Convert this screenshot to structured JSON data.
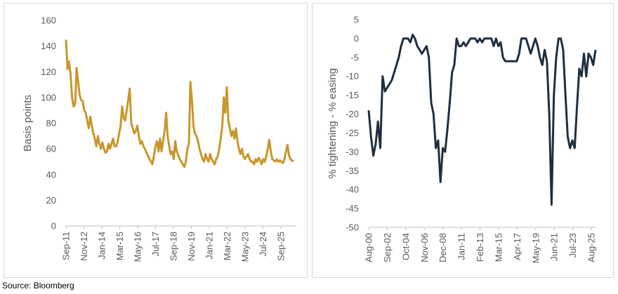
{
  "footer": {
    "source": "Source: Bloomberg"
  },
  "chart_data": [
    {
      "type": "line",
      "title": "",
      "xlabel": "",
      "ylabel": "Basis points",
      "ylim": [
        0,
        160
      ],
      "yticks": [
        0,
        20,
        40,
        60,
        80,
        100,
        120,
        140,
        160
      ],
      "x_tick_labels": [
        "Sep-11",
        "Nov-12",
        "Jan-14",
        "Mar-15",
        "May-16",
        "Jul-17",
        "Sep-18",
        "Nov-19",
        "Jan-21",
        "Mar-22",
        "May-23",
        "Jul-24",
        "Sep-25"
      ],
      "grid": false,
      "legend": "none",
      "color": "#c9962b",
      "series": [
        {
          "name": "",
          "points": [
            [
              "2011-09",
              145
            ],
            [
              "2011-10",
              122
            ],
            [
              "2011-11",
              128
            ],
            [
              "2011-12",
              118
            ],
            [
              "2012-01",
              100
            ],
            [
              "2012-02",
              93
            ],
            [
              "2012-03",
              95
            ],
            [
              "2012-04",
              123
            ],
            [
              "2012-05",
              112
            ],
            [
              "2012-06",
              102
            ],
            [
              "2012-07",
              98
            ],
            [
              "2012-08",
              97
            ],
            [
              "2012-09",
              90
            ],
            [
              "2012-10",
              88
            ],
            [
              "2012-11",
              82
            ],
            [
              "2012-12",
              76
            ],
            [
              "2013-01",
              85
            ],
            [
              "2013-02",
              78
            ],
            [
              "2013-03",
              72
            ],
            [
              "2013-04",
              68
            ],
            [
              "2013-05",
              62
            ],
            [
              "2013-06",
              70
            ],
            [
              "2013-07",
              64
            ],
            [
              "2013-08",
              60
            ],
            [
              "2013-09",
              65
            ],
            [
              "2013-10",
              60
            ],
            [
              "2013-11",
              57
            ],
            [
              "2013-12",
              58
            ],
            [
              "2014-01",
              64
            ],
            [
              "2014-02",
              60
            ],
            [
              "2014-03",
              64
            ],
            [
              "2014-04",
              68
            ],
            [
              "2014-05",
              62
            ],
            [
              "2014-06",
              62
            ],
            [
              "2014-07",
              65
            ],
            [
              "2014-08",
              72
            ],
            [
              "2014-09",
              78
            ],
            [
              "2014-10",
              93
            ],
            [
              "2014-11",
              84
            ],
            [
              "2014-12",
              82
            ],
            [
              "2015-01",
              90
            ],
            [
              "2015-02",
              98
            ],
            [
              "2015-03",
              107
            ],
            [
              "2015-04",
              80
            ],
            [
              "2015-05",
              76
            ],
            [
              "2015-06",
              72
            ],
            [
              "2015-07",
              74
            ],
            [
              "2015-08",
              78
            ],
            [
              "2015-09",
              70
            ],
            [
              "2015-10",
              64
            ],
            [
              "2015-11",
              66
            ],
            [
              "2015-12",
              62
            ],
            [
              "2016-01",
              60
            ],
            [
              "2016-02",
              57
            ],
            [
              "2016-03",
              55
            ],
            [
              "2016-04",
              52
            ],
            [
              "2016-05",
              50
            ],
            [
              "2016-06",
              48
            ],
            [
              "2016-07",
              55
            ],
            [
              "2016-08",
              62
            ],
            [
              "2016-09",
              66
            ],
            [
              "2016-10",
              58
            ],
            [
              "2016-11",
              68
            ],
            [
              "2016-12",
              58
            ],
            [
              "2017-01",
              66
            ],
            [
              "2017-02",
              74
            ],
            [
              "2017-03",
              88
            ],
            [
              "2017-04",
              70
            ],
            [
              "2017-05",
              62
            ],
            [
              "2017-06",
              56
            ],
            [
              "2017-07",
              58
            ],
            [
              "2017-08",
              52
            ],
            [
              "2017-09",
              66
            ],
            [
              "2017-10",
              58
            ],
            [
              "2017-11",
              55
            ],
            [
              "2017-12",
              52
            ],
            [
              "2018-01",
              50
            ],
            [
              "2018-02",
              48
            ],
            [
              "2018-03",
              46
            ],
            [
              "2018-04",
              50
            ],
            [
              "2018-05",
              60
            ],
            [
              "2018-06",
              64
            ],
            [
              "2018-07",
              112
            ],
            [
              "2018-08",
              98
            ],
            [
              "2018-09",
              78
            ],
            [
              "2018-10",
              72
            ],
            [
              "2018-11",
              70
            ],
            [
              "2018-12",
              66
            ],
            [
              "2019-01",
              60
            ],
            [
              "2019-02",
              56
            ],
            [
              "2019-03",
              52
            ],
            [
              "2019-04",
              50
            ],
            [
              "2019-05",
              56
            ],
            [
              "2019-06",
              52
            ],
            [
              "2019-07",
              50
            ],
            [
              "2019-08",
              56
            ],
            [
              "2019-09",
              52
            ],
            [
              "2019-10",
              50
            ],
            [
              "2019-11",
              48
            ],
            [
              "2019-12",
              52
            ],
            [
              "2020-01",
              54
            ],
            [
              "2020-02",
              60
            ],
            [
              "2020-03",
              68
            ],
            [
              "2020-04",
              78
            ],
            [
              "2020-05",
              100
            ],
            [
              "2020-06",
              88
            ],
            [
              "2020-07",
              108
            ],
            [
              "2020-08",
              82
            ],
            [
              "2020-09",
              76
            ],
            [
              "2020-10",
              70
            ],
            [
              "2020-11",
              74
            ],
            [
              "2020-12",
              68
            ],
            [
              "2021-01",
              76
            ],
            [
              "2021-02",
              66
            ],
            [
              "2021-03",
              60
            ],
            [
              "2021-04",
              56
            ],
            [
              "2021-05",
              60
            ],
            [
              "2021-06",
              54
            ],
            [
              "2021-07",
              52
            ],
            [
              "2021-08",
              54
            ],
            [
              "2021-09",
              56
            ],
            [
              "2021-10",
              52
            ],
            [
              "2021-11",
              50
            ],
            [
              "2021-12",
              50
            ],
            [
              "2022-01",
              48
            ],
            [
              "2022-02",
              52
            ],
            [
              "2022-03",
              50
            ],
            [
              "2022-04",
              53
            ],
            [
              "2022-05",
              51
            ],
            [
              "2022-06",
              48
            ],
            [
              "2022-07",
              52
            ],
            [
              "2022-08",
              50
            ],
            [
              "2022-09",
              54
            ],
            [
              "2022-10",
              60
            ],
            [
              "2022-11",
              67
            ],
            [
              "2022-12",
              58
            ],
            [
              "2023-01",
              52
            ],
            [
              "2023-02",
              51
            ],
            [
              "2023-03",
              50
            ],
            [
              "2023-04",
              52
            ],
            [
              "2023-05",
              50
            ],
            [
              "2023-06",
              51
            ],
            [
              "2023-07",
              50
            ],
            [
              "2023-08",
              49
            ],
            [
              "2023-09",
              52
            ],
            [
              "2023-10",
              58
            ],
            [
              "2023-11",
              63
            ],
            [
              "2023-12",
              55
            ],
            [
              "2024-01",
              52
            ],
            [
              "2024-02",
              51
            ],
            [
              "2024-03",
              50
            ]
          ]
        }
      ]
    },
    {
      "type": "line",
      "title": "",
      "xlabel": "",
      "ylabel": "% tightening - % easing",
      "ylim": [
        -50,
        5
      ],
      "yticks": [
        5,
        0,
        -5,
        -10,
        -15,
        -20,
        -25,
        -30,
        -35,
        -40,
        -45,
        -50
      ],
      "x_tick_labels": [
        "Aug-00",
        "Sep-02",
        "Oct-04",
        "Nov-06",
        "Dec-08",
        "Jan-11",
        "Feb-13",
        "Mar-15",
        "Apr-17",
        "May-19",
        "Jun-21",
        "Jul-23",
        "Aug-25"
      ],
      "grid": false,
      "legend": "none",
      "color": "#1f2f3f",
      "series": [
        {
          "name": "",
          "points": [
            [
              "2000-08",
              -19
            ],
            [
              "2000-11",
              -26
            ],
            [
              "2001-02",
              -31
            ],
            [
              "2001-05",
              -28
            ],
            [
              "2001-08",
              -22
            ],
            [
              "2001-11",
              -29
            ],
            [
              "2002-02",
              -10
            ],
            [
              "2002-05",
              -14
            ],
            [
              "2002-08",
              -13
            ],
            [
              "2002-11",
              -12
            ],
            [
              "2003-02",
              -11
            ],
            [
              "2003-05",
              -9
            ],
            [
              "2003-08",
              -7
            ],
            [
              "2003-11",
              -5
            ],
            [
              "2004-02",
              -2
            ],
            [
              "2004-05",
              0
            ],
            [
              "2004-08",
              0
            ],
            [
              "2004-11",
              0
            ],
            [
              "2005-02",
              -1
            ],
            [
              "2005-05",
              1
            ],
            [
              "2005-08",
              0
            ],
            [
              "2005-11",
              -2
            ],
            [
              "2006-02",
              -3
            ],
            [
              "2006-05",
              -4
            ],
            [
              "2006-08",
              -3
            ],
            [
              "2006-11",
              -2
            ],
            [
              "2007-02",
              -5
            ],
            [
              "2007-05",
              -17
            ],
            [
              "2007-08",
              -20
            ],
            [
              "2007-11",
              -29
            ],
            [
              "2008-02",
              -27
            ],
            [
              "2008-05",
              -38
            ],
            [
              "2008-08",
              -29
            ],
            [
              "2008-11",
              -30
            ],
            [
              "2009-02",
              -24
            ],
            [
              "2009-05",
              -17
            ],
            [
              "2009-08",
              -9
            ],
            [
              "2009-11",
              -7
            ],
            [
              "2010-02",
              0
            ],
            [
              "2010-05",
              -2
            ],
            [
              "2010-08",
              -2
            ],
            [
              "2010-11",
              -1
            ],
            [
              "2011-02",
              -2
            ],
            [
              "2011-05",
              -1
            ],
            [
              "2011-08",
              0
            ],
            [
              "2011-11",
              0
            ],
            [
              "2012-02",
              0
            ],
            [
              "2012-05",
              -1
            ],
            [
              "2012-08",
              0
            ],
            [
              "2012-11",
              -1
            ],
            [
              "2013-02",
              0
            ],
            [
              "2013-05",
              0
            ],
            [
              "2013-08",
              0
            ],
            [
              "2013-11",
              0
            ],
            [
              "2014-02",
              -2
            ],
            [
              "2014-05",
              0
            ],
            [
              "2014-08",
              -2
            ],
            [
              "2014-11",
              -1
            ],
            [
              "2015-02",
              -5
            ],
            [
              "2015-05",
              -6
            ],
            [
              "2015-08",
              -6
            ],
            [
              "2015-11",
              -6
            ],
            [
              "2016-02",
              -6
            ],
            [
              "2016-05",
              -6
            ],
            [
              "2016-08",
              -6
            ],
            [
              "2016-11",
              -4
            ],
            [
              "2017-02",
              0
            ],
            [
              "2017-05",
              0
            ],
            [
              "2017-08",
              0
            ],
            [
              "2017-11",
              -2
            ],
            [
              "2018-02",
              -4
            ],
            [
              "2018-05",
              -2
            ],
            [
              "2018-08",
              0
            ],
            [
              "2018-11",
              -2
            ],
            [
              "2019-02",
              -5
            ],
            [
              "2019-05",
              -7
            ],
            [
              "2019-08",
              -3
            ],
            [
              "2019-11",
              -6
            ],
            [
              "2020-02",
              -20
            ],
            [
              "2020-05",
              -44
            ],
            [
              "2020-08",
              -15
            ],
            [
              "2020-11",
              -5
            ],
            [
              "2021-02",
              0
            ],
            [
              "2021-05",
              0
            ],
            [
              "2021-08",
              -3
            ],
            [
              "2021-11",
              -15
            ],
            [
              "2022-02",
              -26
            ],
            [
              "2022-05",
              -29
            ],
            [
              "2022-08",
              -27
            ],
            [
              "2022-11",
              -29
            ],
            [
              "2023-02",
              -18
            ],
            [
              "2023-05",
              -8
            ],
            [
              "2023-08",
              -10
            ],
            [
              "2023-11",
              -4
            ],
            [
              "2024-02",
              -10
            ],
            [
              "2024-05",
              -4
            ],
            [
              "2024-08",
              -5
            ],
            [
              "2024-11",
              -7
            ],
            [
              "2025-02",
              -3
            ]
          ]
        }
      ]
    }
  ]
}
